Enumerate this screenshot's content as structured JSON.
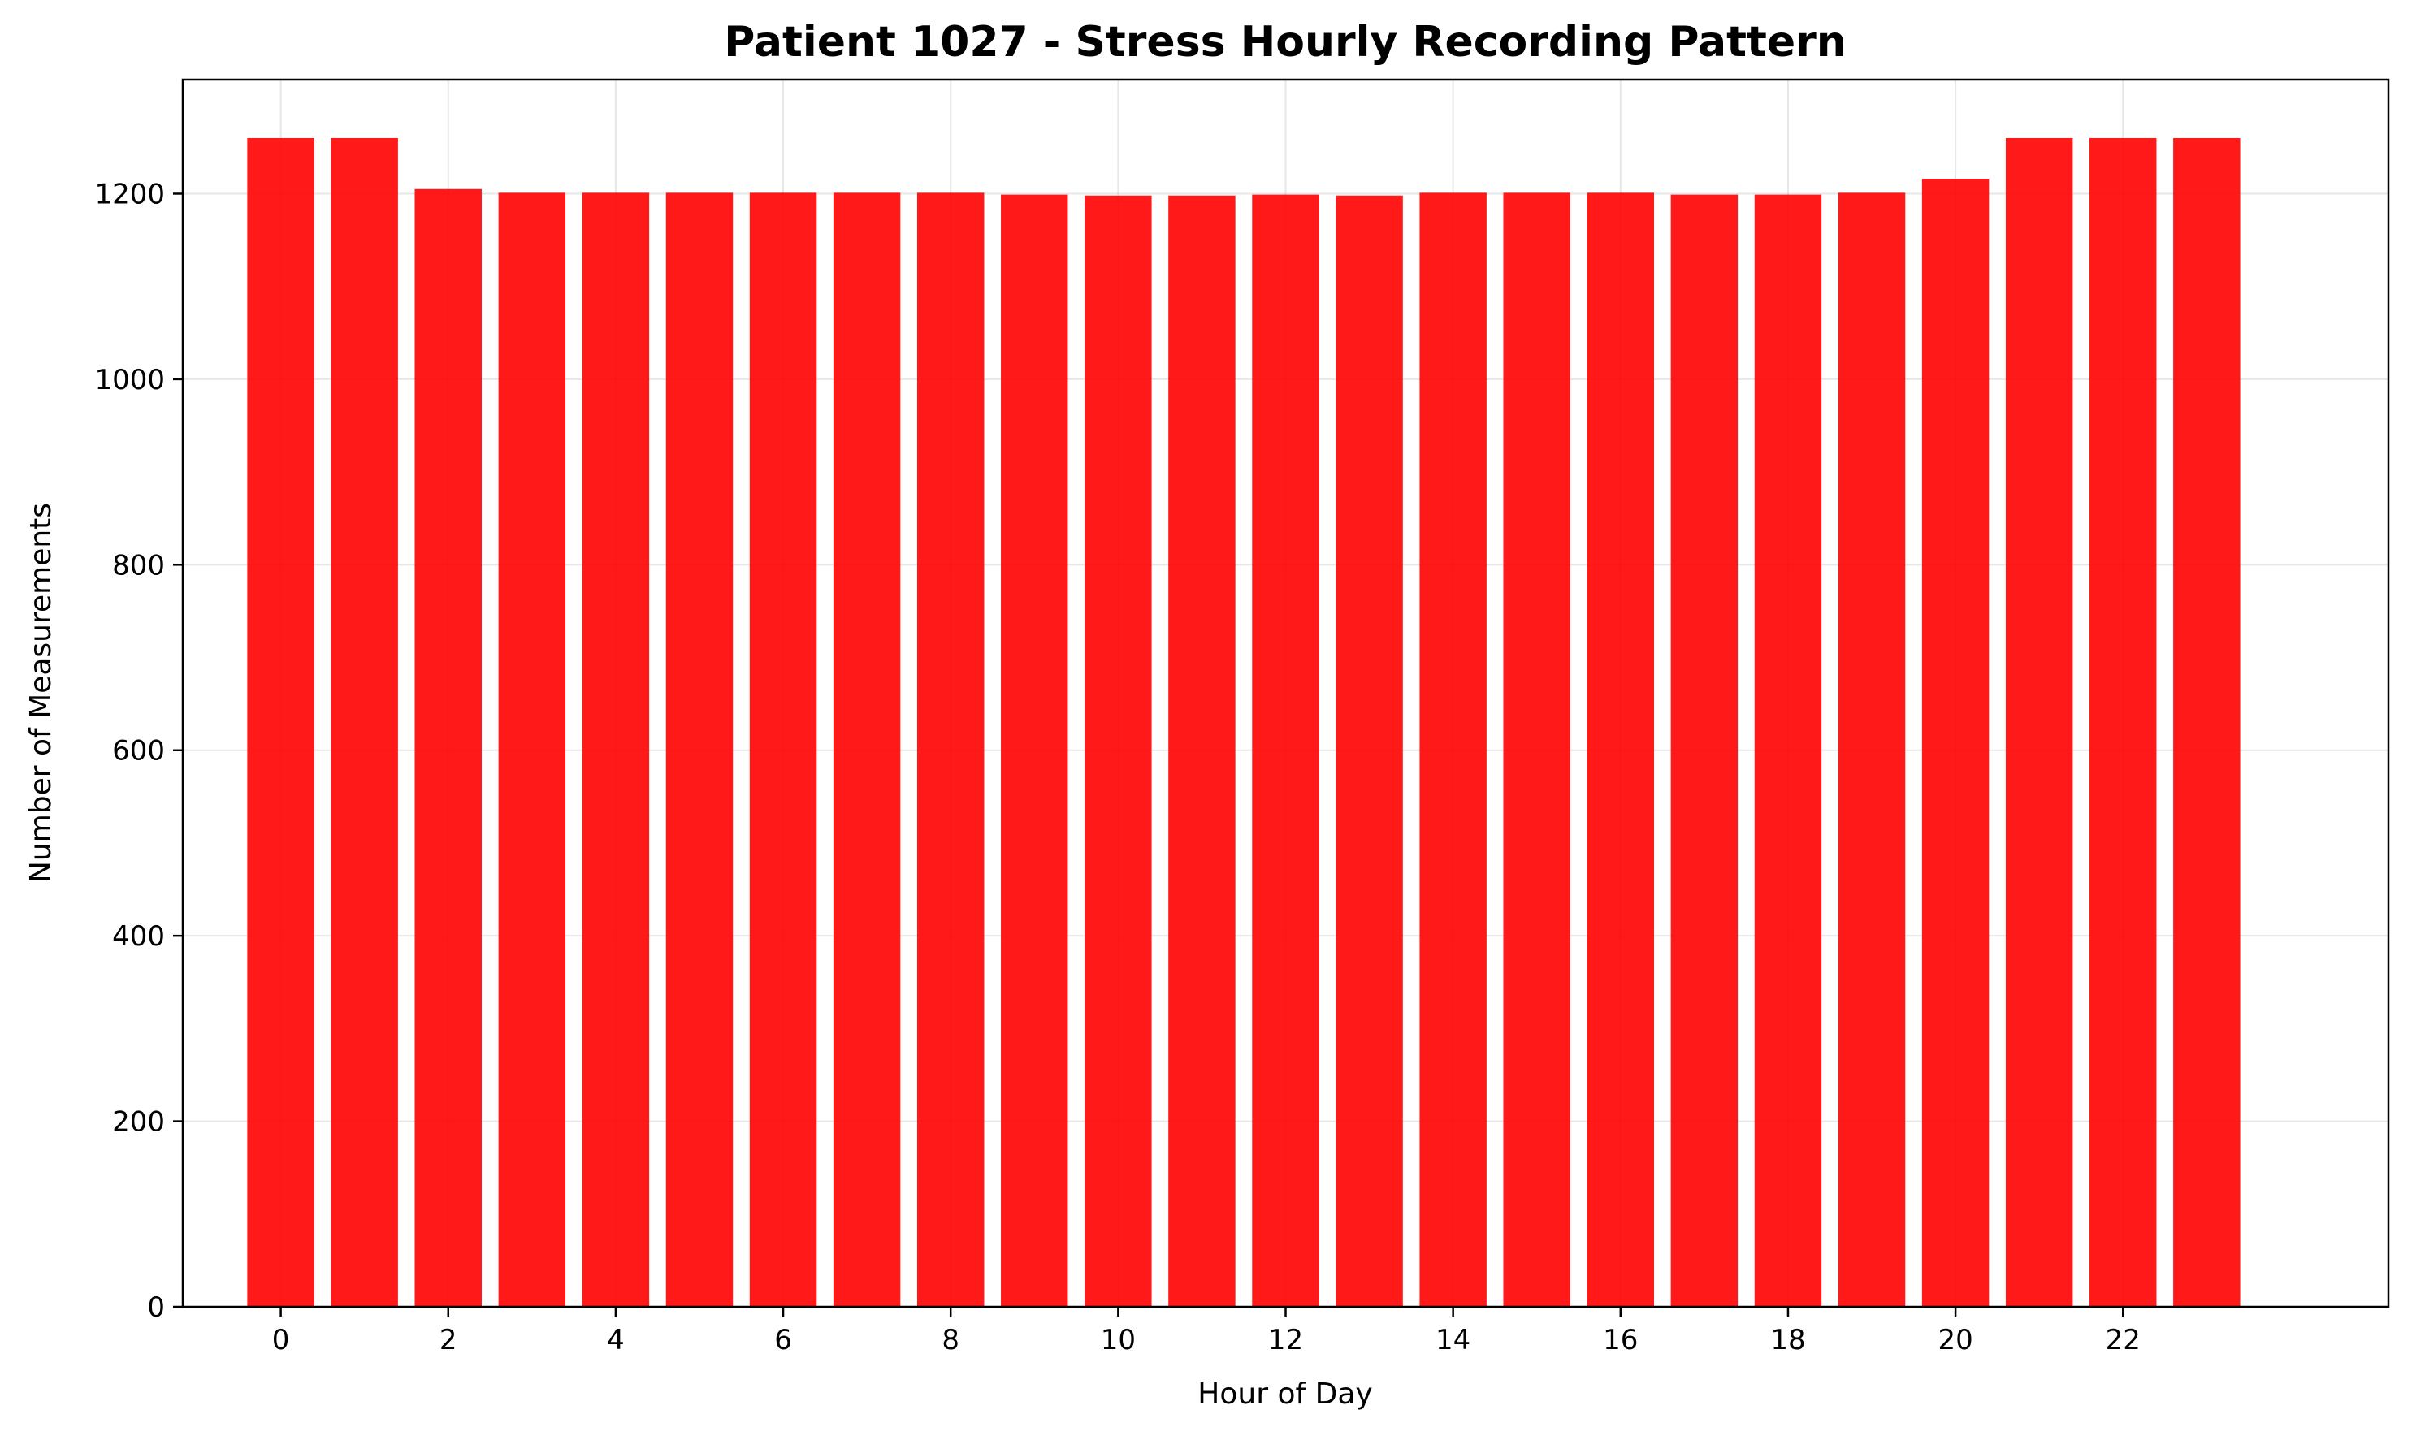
{
  "chart_data": {
    "type": "bar",
    "title": "Patient 1027 - Stress Hourly Recording Pattern",
    "xlabel": "Hour of Day",
    "ylabel": "Number of Measurements",
    "categories": [
      0,
      1,
      2,
      3,
      4,
      5,
      6,
      7,
      8,
      9,
      10,
      11,
      12,
      13,
      14,
      15,
      16,
      17,
      18,
      19,
      20,
      21,
      22,
      23
    ],
    "values": [
      1260,
      1260,
      1205,
      1201,
      1201,
      1201,
      1201,
      1201,
      1201,
      1199,
      1198,
      1198,
      1199,
      1198,
      1201,
      1201,
      1201,
      1199,
      1199,
      1201,
      1216,
      1260,
      1260,
      1260
    ],
    "xticks": [
      "0",
      "2",
      "4",
      "6",
      "8",
      "10",
      "12",
      "14",
      "16",
      "18",
      "20",
      "22"
    ],
    "yticks": [
      "0",
      "200",
      "400",
      "600",
      "800",
      "1000",
      "1200"
    ],
    "xlim": [
      -1.17,
      25.17
    ],
    "ylim": [
      0,
      1323
    ],
    "bar_color": "#ff0000",
    "bar_opacity": 0.9,
    "grid": true,
    "legend": "none"
  }
}
